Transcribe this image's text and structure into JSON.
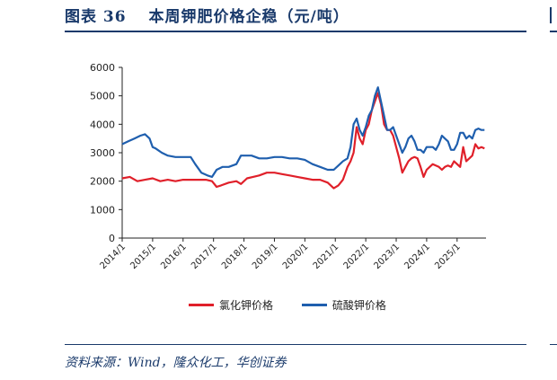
{
  "header": {
    "label": "图表",
    "number": "36",
    "text": "本周钾肥价格企稳（元/吨）"
  },
  "source": "资料来源：Wind，隆众化工，华创证券",
  "colors": {
    "kcl": "#e0202a",
    "sop": "#1f5fae",
    "axis": "#222222",
    "accent": "#1a3a6b"
  },
  "chart_data": {
    "type": "line",
    "title": "本周钾肥价格企稳（元/吨）",
    "xlabel": "",
    "ylabel": "",
    "ylim": [
      0,
      6000
    ],
    "yticks": [
      0,
      1000,
      2000,
      3000,
      4000,
      5000,
      6000
    ],
    "xlim": [
      2014.0,
      2025.95
    ],
    "xticks": [
      "2014/1",
      "2015/1",
      "2016/1",
      "2017/1",
      "2018/1",
      "2019/1",
      "2020/1",
      "2021/1",
      "2022/1",
      "2023/1",
      "2024/1",
      "2025/1"
    ],
    "grid": false,
    "legend_position": "bottom",
    "series": [
      {
        "name": "氯化钾价格",
        "color": "#e0202a",
        "x": [
          2014.0,
          2014.25,
          2014.5,
          2014.75,
          2015.0,
          2015.25,
          2015.5,
          2015.75,
          2016.0,
          2016.25,
          2016.5,
          2016.75,
          2016.95,
          2017.1,
          2017.25,
          2017.5,
          2017.75,
          2017.9,
          2018.1,
          2018.3,
          2018.5,
          2018.75,
          2019.0,
          2019.25,
          2019.5,
          2019.75,
          2020.0,
          2020.25,
          2020.5,
          2020.75,
          2020.95,
          2021.1,
          2021.25,
          2021.4,
          2021.5,
          2021.6,
          2021.7,
          2021.8,
          2021.9,
          2022.0,
          2022.1,
          2022.2,
          2022.3,
          2022.4,
          2022.5,
          2022.6,
          2022.7,
          2022.8,
          2022.9,
          2023.0,
          2023.1,
          2023.2,
          2023.3,
          2023.4,
          2023.5,
          2023.6,
          2023.7,
          2023.8,
          2023.9,
          2024.0,
          2024.1,
          2024.2,
          2024.3,
          2024.4,
          2024.5,
          2024.6,
          2024.7,
          2024.8,
          2024.9,
          2025.0,
          2025.1,
          2025.15,
          2025.2,
          2025.3,
          2025.4,
          2025.5,
          2025.6,
          2025.7,
          2025.8,
          2025.9
        ],
        "values": [
          2100,
          2150,
          2000,
          2050,
          2100,
          2000,
          2050,
          2000,
          2050,
          2050,
          2050,
          2050,
          2000,
          1800,
          1850,
          1950,
          2000,
          1900,
          2100,
          2150,
          2200,
          2300,
          2300,
          2250,
          2200,
          2150,
          2100,
          2050,
          2050,
          1950,
          1750,
          1850,
          2050,
          2500,
          2700,
          3000,
          3900,
          3500,
          3300,
          3800,
          4000,
          4500,
          4800,
          5100,
          4700,
          4000,
          3800,
          3800,
          3600,
          3200,
          2800,
          2300,
          2500,
          2700,
          2800,
          2850,
          2800,
          2500,
          2150,
          2400,
          2500,
          2600,
          2550,
          2500,
          2400,
          2500,
          2550,
          2500,
          2700,
          2600,
          2500,
          2850,
          3200,
          2700,
          2800,
          2900,
          3300,
          3150,
          3200,
          3150
        ]
      },
      {
        "name": "硫酸钾价格",
        "color": "#1f5fae",
        "x": [
          2014.0,
          2014.2,
          2014.4,
          2014.6,
          2014.75,
          2014.9,
          2015.0,
          2015.1,
          2015.3,
          2015.5,
          2015.75,
          2016.0,
          2016.25,
          2016.4,
          2016.6,
          2016.8,
          2016.95,
          2017.1,
          2017.3,
          2017.5,
          2017.75,
          2017.9,
          2018.0,
          2018.25,
          2018.5,
          2018.75,
          2019.0,
          2019.25,
          2019.5,
          2019.75,
          2020.0,
          2020.25,
          2020.5,
          2020.75,
          2020.95,
          2021.1,
          2021.25,
          2021.4,
          2021.5,
          2021.6,
          2021.7,
          2021.8,
          2021.9,
          2022.0,
          2022.1,
          2022.2,
          2022.3,
          2022.4,
          2022.5,
          2022.6,
          2022.7,
          2022.8,
          2022.9,
          2023.0,
          2023.1,
          2023.2,
          2023.3,
          2023.4,
          2023.5,
          2023.6,
          2023.7,
          2023.8,
          2023.9,
          2024.0,
          2024.1,
          2024.2,
          2024.3,
          2024.4,
          2024.5,
          2024.6,
          2024.7,
          2024.8,
          2024.9,
          2025.0,
          2025.1,
          2025.2,
          2025.3,
          2025.4,
          2025.5,
          2025.6,
          2025.7,
          2025.8,
          2025.9
        ],
        "values": [
          3300,
          3400,
          3500,
          3600,
          3650,
          3500,
          3200,
          3150,
          3000,
          2900,
          2850,
          2850,
          2850,
          2600,
          2300,
          2200,
          2150,
          2400,
          2500,
          2500,
          2600,
          2900,
          2900,
          2900,
          2800,
          2800,
          2850,
          2850,
          2800,
          2800,
          2750,
          2600,
          2500,
          2400,
          2400,
          2550,
          2700,
          2800,
          3200,
          4000,
          4200,
          3800,
          3600,
          3900,
          4300,
          4500,
          5000,
          5300,
          4800,
          4300,
          3800,
          3800,
          3900,
          3600,
          3300,
          3000,
          3200,
          3500,
          3600,
          3400,
          3100,
          3100,
          3000,
          3200,
          3200,
          3200,
          3100,
          3300,
          3600,
          3500,
          3400,
          3100,
          3100,
          3300,
          3700,
          3700,
          3500,
          3600,
          3500,
          3800,
          3850,
          3800,
          3800
        ]
      }
    ]
  }
}
